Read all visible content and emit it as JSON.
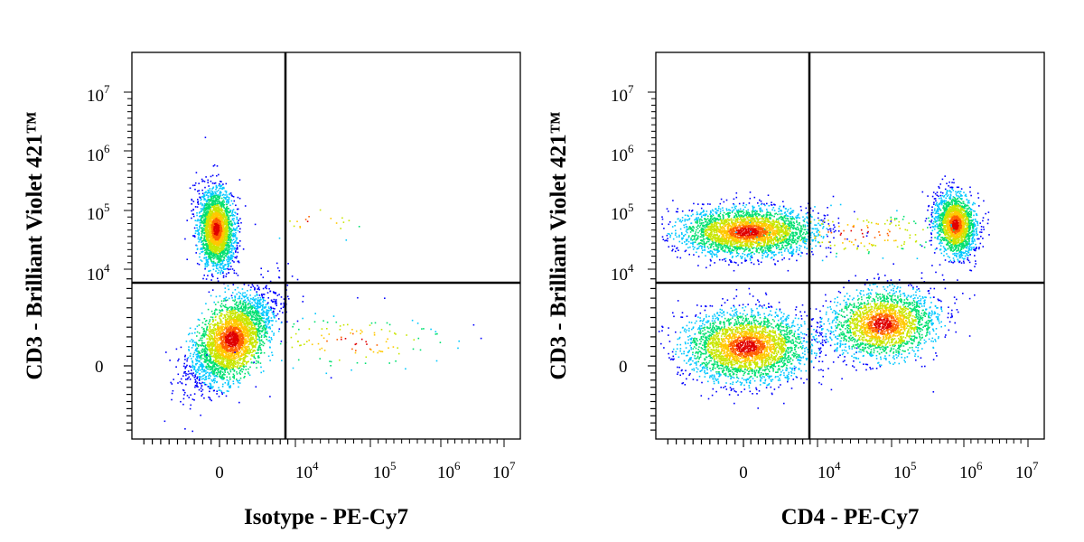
{
  "chart_data": [
    {
      "type": "scatter",
      "subtype": "flow-cytometry-density-dot-plot",
      "xlabel": "Isotype - PE-Cy7",
      "ylabel": "CD3 - Brilliant Violet 421™",
      "x_scale": "biexponential",
      "y_scale": "biexponential",
      "x_ticks": [
        "0",
        "10^4",
        "10^5",
        "10^6",
        "10^7"
      ],
      "y_ticks": [
        "0",
        "10^4",
        "10^5",
        "10^6",
        "10^7"
      ],
      "quadrant_gate": {
        "x": 6500,
        "y": 6500
      },
      "grid": false,
      "legend": "none",
      "colormap": [
        "#0000ff",
        "#00c8ff",
        "#00e070",
        "#c8e600",
        "#ffc800",
        "#ff6000",
        "#e00000"
      ],
      "populations": [
        {
          "x_center": 0,
          "y_center": 50000,
          "density": "high"
        },
        {
          "x_center": 1000,
          "y_center": 0,
          "density": "high"
        },
        {
          "x_center": 50000,
          "y_center": 50000,
          "density": "sparse"
        },
        {
          "x_center": 100000,
          "y_center": 0,
          "density": "sparse"
        }
      ]
    },
    {
      "type": "scatter",
      "subtype": "flow-cytometry-density-dot-plot",
      "xlabel": "CD4 - PE-Cy7",
      "ylabel": "CD3 - Brilliant Violet 421™",
      "x_scale": "biexponential",
      "y_scale": "biexponential",
      "x_ticks": [
        "0",
        "10^4",
        "10^5",
        "10^6",
        "10^7"
      ],
      "y_ticks": [
        "0",
        "10^4",
        "10^5",
        "10^6",
        "10^7"
      ],
      "quadrant_gate": {
        "x": 6500,
        "y": 6500
      },
      "grid": false,
      "legend": "none",
      "colormap": [
        "#0000ff",
        "#00c8ff",
        "#00e070",
        "#c8e600",
        "#ffc800",
        "#ff6000",
        "#e00000"
      ],
      "populations": [
        {
          "x_center": 0,
          "y_center": 40000,
          "density": "high"
        },
        {
          "x_center": 700000,
          "y_center": 60000,
          "density": "very high"
        },
        {
          "x_center": 0,
          "y_center": 0,
          "density": "high"
        },
        {
          "x_center": 70000,
          "y_center": 0,
          "density": "high"
        }
      ]
    }
  ]
}
